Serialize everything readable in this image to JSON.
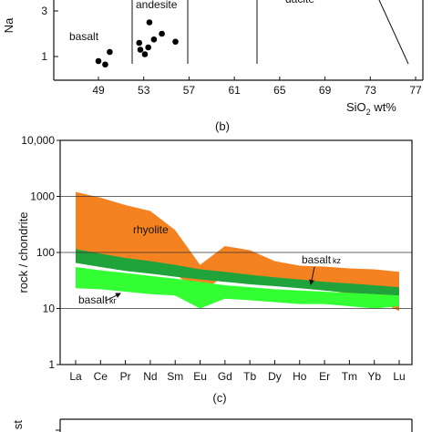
{
  "chart_data": [
    {
      "type": "scatter",
      "title": "",
      "xlabel_base": "SiO",
      "xlabel_sub": "2",
      "xlabel_rest": " wt%",
      "ylabel": "Na",
      "x_ticks": [
        "49",
        "53",
        "57",
        "61",
        "65",
        "69",
        "73",
        "77"
      ],
      "y_ticks": [
        "1",
        "3"
      ],
      "xlim": [
        45,
        77
      ],
      "ylim": [
        0,
        4.3
      ],
      "field_labels": {
        "basalt": "basalt",
        "andesite": "andesite",
        "dacite": "dacite"
      },
      "points": [
        {
          "x": 49.0,
          "y": 0.8
        },
        {
          "x": 49.6,
          "y": 0.65
        },
        {
          "x": 50.0,
          "y": 1.2
        },
        {
          "x": 52.6,
          "y": 1.6
        },
        {
          "x": 52.7,
          "y": 1.3
        },
        {
          "x": 53.1,
          "y": 1.1
        },
        {
          "x": 53.4,
          "y": 1.4
        },
        {
          "x": 53.5,
          "y": 2.5
        },
        {
          "x": 53.9,
          "y": 1.75
        },
        {
          "x": 54.6,
          "y": 2.0
        },
        {
          "x": 55.8,
          "y": 1.65
        }
      ],
      "grid": false
    },
    {
      "type": "area",
      "xlabel": "",
      "ylabel": "rock / chondrite",
      "log_y": true,
      "categories": [
        "La",
        "Ce",
        "Pr",
        "Nd",
        "Sm",
        "Eu",
        "Gd",
        "Tb",
        "Dy",
        "Ho",
        "Er",
        "Tm",
        "Yb",
        "Lu"
      ],
      "y_ticks": [
        "1",
        "10",
        "100",
        "1000",
        "10,000"
      ],
      "ylim": [
        1,
        10000
      ],
      "series": [
        {
          "name": "rhyolite",
          "color": "#f58220",
          "upper": [
            1200,
            950,
            700,
            550,
            250,
            60,
            130,
            110,
            70,
            58,
            56,
            52,
            50,
            45
          ],
          "lower": [
            85,
            70,
            60,
            50,
            42,
            18,
            40,
            35,
            30,
            25,
            22,
            18,
            15,
            9
          ]
        },
        {
          "name": "basalt",
          "tag": "kz",
          "color": "#1fa33a",
          "upper": [
            115,
            95,
            80,
            70,
            60,
            50,
            45,
            40,
            36,
            33,
            30,
            28,
            26,
            24
          ],
          "lower": [
            65,
            55,
            47,
            42,
            37,
            33,
            30,
            27,
            25,
            23,
            21,
            19,
            18,
            17
          ]
        },
        {
          "name": "basalt",
          "tag": "kr",
          "color": "#33ff33",
          "upper": [
            55,
            48,
            43,
            38,
            34,
            30,
            26,
            24,
            22,
            21,
            20,
            19,
            18,
            17
          ],
          "lower": [
            23,
            22,
            20,
            18,
            17,
            10,
            15,
            14,
            13,
            12,
            12,
            11,
            10,
            11
          ]
        }
      ],
      "grid": "horizontal"
    }
  ],
  "panel_labels": {
    "b": "(b)",
    "c": "(c)"
  },
  "panel_d": {
    "ylabel_fragment": "st"
  },
  "colors": {
    "axis": "#111111",
    "rhyolite": "#f58220",
    "basalt_kz": "#1fa33a",
    "basalt_kr": "#33ff33"
  }
}
